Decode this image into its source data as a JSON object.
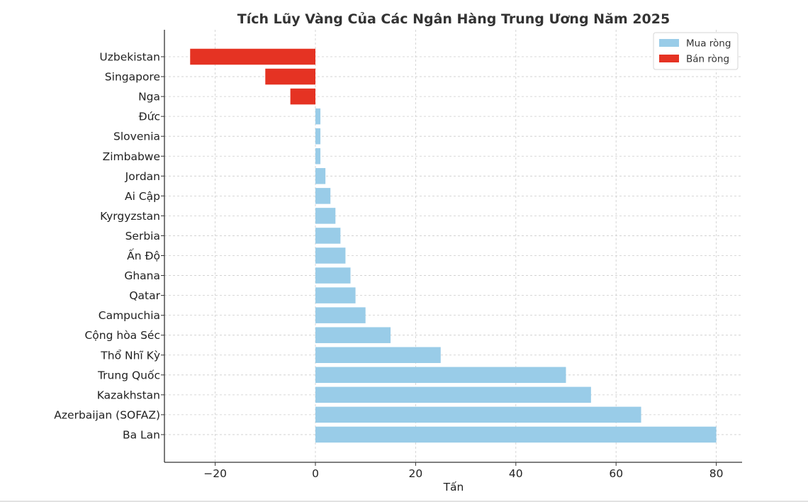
{
  "chart_data": {
    "type": "bar",
    "orientation": "horizontal",
    "title": "Tích Lũy Vàng Của Các Ngân Hàng Trung Ương Năm 2025",
    "xlabel": "Tấn",
    "ylabel": "",
    "xlim": [
      -30,
      85
    ],
    "xticks": [
      -20,
      0,
      20,
      40,
      60,
      80
    ],
    "xtick_labels": [
      "−20",
      "0",
      "20",
      "40",
      "60",
      "80"
    ],
    "grid": true,
    "legend_position": "top-right",
    "categories": [
      "Uzbekistan",
      "Singapore",
      "Nga",
      "Đức",
      "Slovenia",
      "Zimbabwe",
      "Jordan",
      "Ai Cập",
      "Kyrgyzstan",
      "Serbia",
      "Ấn Độ",
      "Ghana",
      "Qatar",
      "Campuchia",
      "Cộng hòa Séc",
      "Thổ Nhĩ Kỳ",
      "Trung Quốc",
      "Kazakhstan",
      "Azerbaijan (SOFAZ)",
      "Ba Lan"
    ],
    "values": [
      -25,
      -10,
      -5,
      1,
      1,
      1,
      2,
      3,
      4,
      5,
      6,
      7,
      8,
      10,
      15,
      25,
      50,
      55,
      65,
      80
    ],
    "series": [
      {
        "name": "Mua ròng",
        "color": "#99cce8",
        "applies_to": "positive"
      },
      {
        "name": "Bán ròng",
        "color": "#e53323",
        "applies_to": "negative"
      }
    ]
  }
}
